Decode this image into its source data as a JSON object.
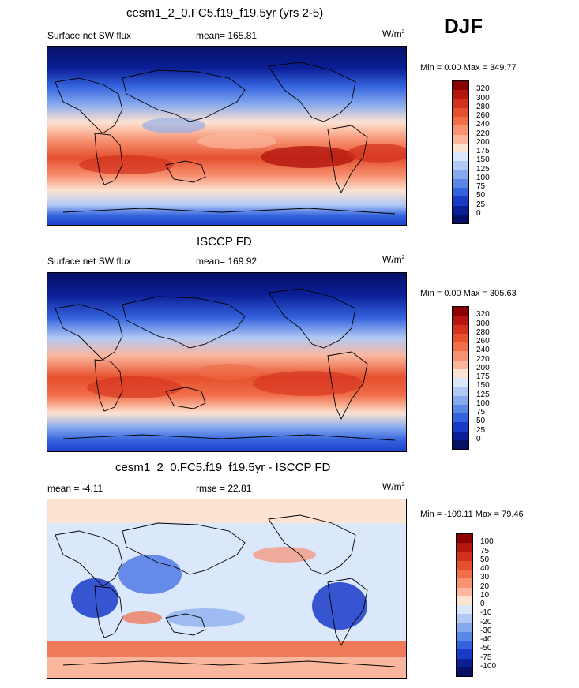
{
  "season": "DJF",
  "panels": [
    {
      "title": "cesm1_2_0.FC5.f19_f19.5yr (yrs 2-5)",
      "left_label": "Surface net SW flux",
      "center_label": "mean= 165.81",
      "units": "W/m",
      "units_sup": "2",
      "minmax": "Min =   0.00 Max = 349.77",
      "levels": [
        "320",
        "300",
        "280",
        "260",
        "240",
        "220",
        "200",
        "175",
        "150",
        "125",
        "100",
        "75",
        "50",
        "25",
        "0"
      ],
      "colors": [
        "#8b0000",
        "#b3160f",
        "#d3311c",
        "#e5502e",
        "#f06e48",
        "#f79272",
        "#fbb79d",
        "#fde3d2",
        "#dbe7fb",
        "#b1c9f5",
        "#86a9ee",
        "#5b87e6",
        "#3463de",
        "#1a3bc8",
        "#0a1e96",
        "#061166"
      ]
    },
    {
      "title": "ISCCP FD",
      "left_label": "Surface net SW flux",
      "center_label": "mean= 169.92",
      "units": "W/m",
      "units_sup": "2",
      "minmax": "Min =   0.00 Max = 305.63",
      "levels": [
        "320",
        "300",
        "280",
        "260",
        "240",
        "220",
        "200",
        "175",
        "150",
        "125",
        "100",
        "75",
        "50",
        "25",
        "0"
      ],
      "colors": [
        "#8b0000",
        "#b3160f",
        "#d3311c",
        "#e5502e",
        "#f06e48",
        "#f79272",
        "#fbb79d",
        "#fde3d2",
        "#dbe7fb",
        "#b1c9f5",
        "#86a9ee",
        "#5b87e6",
        "#3463de",
        "#1a3bc8",
        "#0a1e96",
        "#061166"
      ]
    },
    {
      "title": "cesm1_2_0.FC5.f19_f19.5yr - ISCCP FD",
      "left_label": "mean =  -4.11",
      "center_label": "rmse =  22.81",
      "units": "W/m",
      "units_sup": "2",
      "minmax": "Min = -109.11 Max =  79.46",
      "levels": [
        "100",
        "75",
        "50",
        "40",
        "30",
        "20",
        "10",
        "0",
        "-10",
        "-20",
        "-30",
        "-40",
        "-50",
        "-75",
        "-100"
      ],
      "colors": [
        "#8b0000",
        "#b3160f",
        "#d3311c",
        "#e5502e",
        "#f06e48",
        "#f79272",
        "#fbb79d",
        "#fde3d2",
        "#dbe7fb",
        "#b1c9f5",
        "#86a9ee",
        "#5b87e6",
        "#3463de",
        "#1a3bc8",
        "#0a1e96",
        "#061166"
      ]
    }
  ]
}
